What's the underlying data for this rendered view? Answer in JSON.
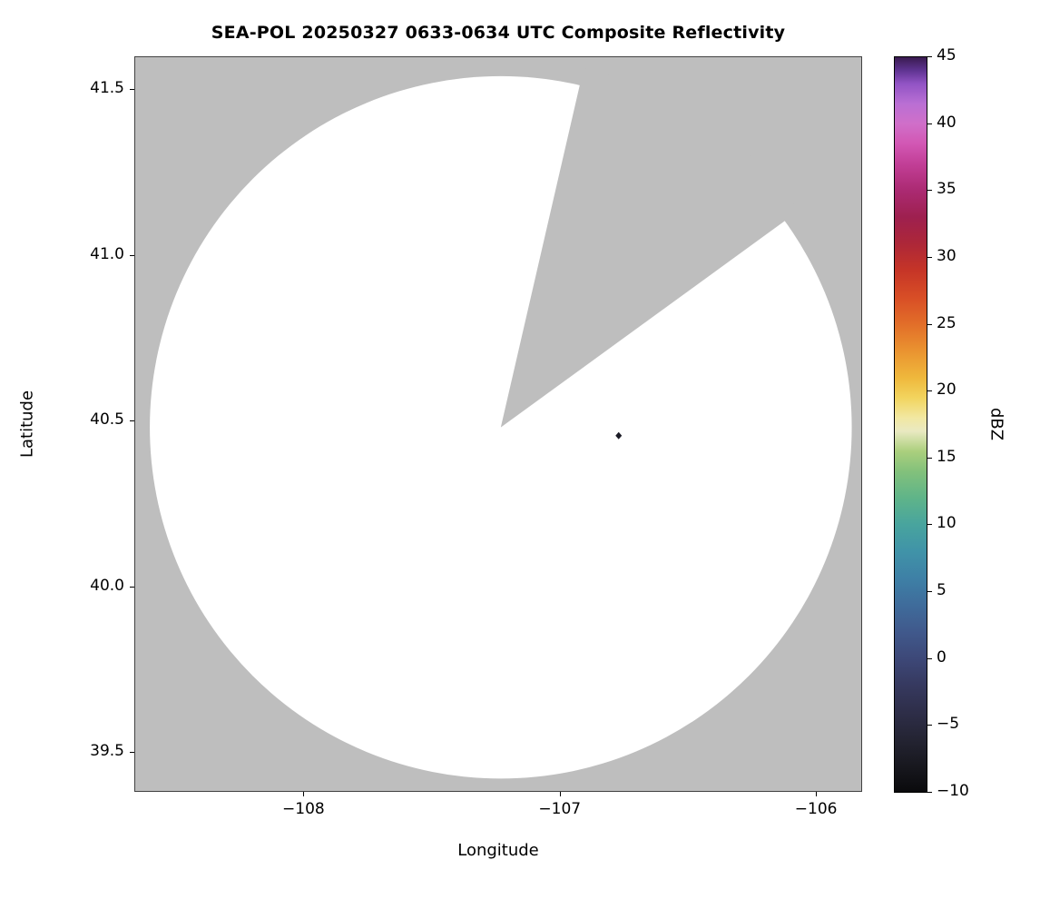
{
  "chart_data": {
    "type": "radar_coverage_map",
    "title": "SEA-POL 20250327 0633-0634 UTC Composite Reflectivity",
    "xlabel": "Longitude",
    "ylabel": "Latitude",
    "xlim": [
      -108.66,
      -105.82
    ],
    "ylim": [
      39.38,
      41.6
    ],
    "x_ticks": [
      -108,
      -107,
      -106
    ],
    "y_ticks": [
      39.5,
      40.0,
      40.5,
      41.0,
      41.5
    ],
    "background_color": "#bebebe",
    "grid": false,
    "coverage": {
      "center_lon": -107.23,
      "center_lat": 40.48,
      "radius_deg_lat": 1.06,
      "fill": "#ffffff",
      "blanked_sector_deg_from_east": [
        36,
        77
      ]
    },
    "echoes": [
      {
        "lon": -106.77,
        "lat": 40.455,
        "color": "#1b1b26"
      }
    ],
    "colorbar": {
      "label": "dBZ",
      "min": -10,
      "max": 45,
      "ticks": [
        45,
        40,
        35,
        30,
        25,
        20,
        15,
        10,
        5,
        0,
        -5,
        -10
      ],
      "stops": [
        {
          "v": -10,
          "c": "#0a0a0c"
        },
        {
          "v": -8,
          "c": "#18181f"
        },
        {
          "v": -6,
          "c": "#242433"
        },
        {
          "v": -4,
          "c": "#2e2e49"
        },
        {
          "v": -2,
          "c": "#36395f"
        },
        {
          "v": 0,
          "c": "#3d4878"
        },
        {
          "v": 2,
          "c": "#40598c"
        },
        {
          "v": 4,
          "c": "#3f6c9b"
        },
        {
          "v": 6,
          "c": "#3e80a6"
        },
        {
          "v": 8,
          "c": "#4093a8"
        },
        {
          "v": 10,
          "c": "#48a49e"
        },
        {
          "v": 12,
          "c": "#5fb489"
        },
        {
          "v": 14,
          "c": "#83c17b"
        },
        {
          "v": 15.5,
          "c": "#abcf7d"
        },
        {
          "v": 17,
          "c": "#e9e9c1"
        },
        {
          "v": 18,
          "c": "#f2e8a2"
        },
        {
          "v": 19.5,
          "c": "#f2d45e"
        },
        {
          "v": 21,
          "c": "#efb83c"
        },
        {
          "v": 23,
          "c": "#ea9330"
        },
        {
          "v": 25,
          "c": "#e26e29"
        },
        {
          "v": 27,
          "c": "#d84e26"
        },
        {
          "v": 29,
          "c": "#c63527"
        },
        {
          "v": 31,
          "c": "#ad2738"
        },
        {
          "v": 33,
          "c": "#9e204f"
        },
        {
          "v": 35,
          "c": "#ab2a72"
        },
        {
          "v": 37,
          "c": "#c23f97"
        },
        {
          "v": 38.5,
          "c": "#d257b4"
        },
        {
          "v": 40,
          "c": "#d06fc9"
        },
        {
          "v": 41.5,
          "c": "#b96fd4"
        },
        {
          "v": 43,
          "c": "#9153c4"
        },
        {
          "v": 44,
          "c": "#5e3390"
        },
        {
          "v": 45,
          "c": "#381a4d"
        }
      ]
    }
  }
}
